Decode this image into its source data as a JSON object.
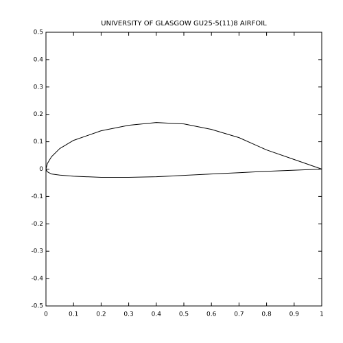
{
  "chart_data": {
    "type": "line",
    "title": "UNIVERSITY OF GLASGOW GU25-5(11)8 AIRFOIL",
    "x": [
      1,
      0.9,
      0.8,
      0.7,
      0.6,
      0.5,
      0.4,
      0.3,
      0.2,
      0.1,
      0.05,
      0.02,
      0.005,
      0,
      0.005,
      0.02,
      0.05,
      0.1,
      0.2,
      0.3,
      0.4,
      0.5,
      0.6,
      0.7,
      0.8,
      0.9,
      1
    ],
    "values": [
      0,
      0.035,
      0.07,
      0.115,
      0.145,
      0.165,
      0.17,
      0.16,
      0.14,
      0.105,
      0.075,
      0.045,
      0.02,
      0,
      -0.01,
      -0.018,
      -0.022,
      -0.026,
      -0.03,
      -0.03,
      -0.028,
      -0.023,
      -0.018,
      -0.013,
      -0.008,
      -0.004,
      0
    ],
    "color": "#000000",
    "xlim": [
      0,
      1
    ],
    "xticks": [
      0,
      0.1,
      0.2,
      0.3,
      0.4,
      0.5,
      0.6,
      0.7,
      0.8,
      0.9,
      1
    ],
    "ylim": [
      -0.5,
      0.5
    ],
    "yticks": [
      -0.5,
      -0.4,
      -0.3,
      -0.2,
      -0.1,
      0,
      0.1,
      0.2,
      0.3,
      0.4,
      0.5
    ]
  }
}
